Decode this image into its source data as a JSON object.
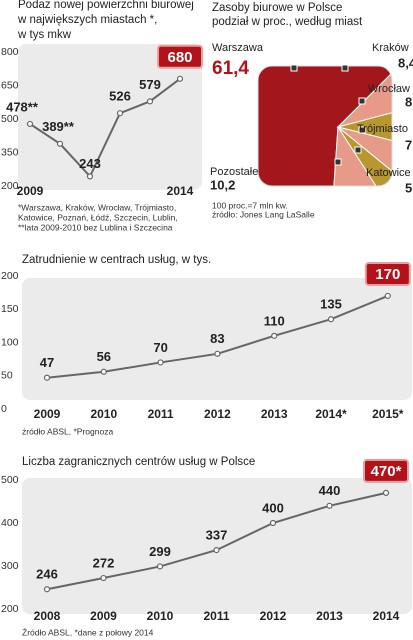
{
  "chart_data": [
    {
      "type": "line",
      "title": [
        "Podaż nowej powierzchni biurowej",
        "w największych miastach *,",
        "w tys mkw"
      ],
      "categories": [
        "2009",
        null,
        null,
        null,
        null,
        "2014"
      ],
      "values": [
        478,
        389,
        243,
        526,
        579,
        680
      ],
      "value_labels": [
        "478**",
        "389**",
        "243",
        "526",
        "579",
        "680"
      ],
      "ylim": [
        200,
        800
      ],
      "yticks": [
        200,
        350,
        500,
        650,
        800
      ],
      "notes": [
        "*Warszawa, Kraków, Wrocław, Trójmiasto,",
        "Katowice, Poznań, Łódź, Szczecin, Lublin,",
        "**lata 2009-2010 bez Lublina i Szczecina"
      ]
    },
    {
      "type": "pie",
      "title": [
        "Zasoby biurowe w Polsce",
        "podział w proc., według miast"
      ],
      "categories": [
        "Warszawa",
        "Kraków",
        "Wrocław",
        "Trójmiasto",
        "Katowice",
        "Pozostałe"
      ],
      "values": [
        61.4,
        8.4,
        8,
        7,
        5,
        10.2
      ],
      "value_labels": [
        "61,4",
        "8,4",
        "8",
        "7",
        "5",
        "10,2"
      ],
      "colors": [
        "#a3161c",
        "#e79a88",
        "#b8972e",
        "#e79a88",
        "#b8972e",
        "#e79a88"
      ],
      "notes": [
        "100 proc.=7 mln kw.",
        "źródło: Jones Lang LaSalle"
      ]
    },
    {
      "type": "line",
      "title": [
        "Zatrudnienie w centrach usług, w tys."
      ],
      "categories": [
        "2009",
        "2010",
        "2011",
        "2012",
        "2013",
        "2014*",
        "2015*"
      ],
      "values": [
        47,
        56,
        70,
        83,
        110,
        135,
        170
      ],
      "ylim": [
        0,
        200
      ],
      "yticks": [
        0,
        50,
        100,
        150,
        200
      ],
      "notes": [
        "źródło ABSL, *Prognoza"
      ]
    },
    {
      "type": "line",
      "title": [
        "Liczba zagranicznych centrów usług w Polsce"
      ],
      "categories": [
        "2008",
        "2009",
        "2010",
        "2011",
        "2012",
        "2013",
        "2014"
      ],
      "values": [
        246,
        272,
        299,
        337,
        400,
        440,
        470
      ],
      "value_labels": [
        "246",
        "272",
        "299",
        "337",
        "400",
        "440",
        "470*"
      ],
      "ylim": [
        200,
        500
      ],
      "yticks": [
        200,
        300,
        400,
        500
      ],
      "notes": [
        "Źródło ABSL, *dane z połowy 2014"
      ]
    }
  ]
}
